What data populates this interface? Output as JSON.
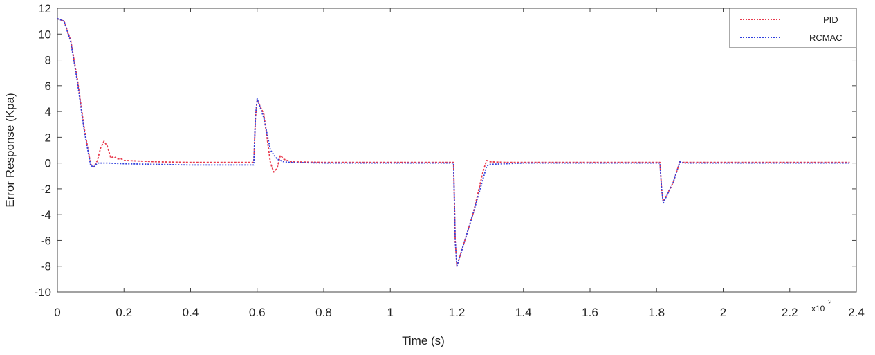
{
  "chart_data": {
    "type": "line",
    "xlabel": "Time (s)",
    "ylabel": "Error Response (Kpa)",
    "xlim": [
      0,
      2.4
    ],
    "ylim": [
      -10,
      12
    ],
    "x_ticks": [
      "0",
      "0.2",
      "0.4",
      "0.6",
      "0.8",
      "1",
      "1.2",
      "1.4",
      "1.6",
      "1.8",
      "2",
      "2.2",
      "2.4"
    ],
    "y_ticks": [
      "12",
      "10",
      "8",
      "6",
      "4",
      "2",
      "0",
      "-2",
      "-4",
      "-6",
      "-8",
      "-10"
    ],
    "x_multiplier": "x10",
    "x_multiplier_exp": "2",
    "legend_position": "top-right",
    "series": [
      {
        "name": "PID",
        "color": "#e8394c",
        "x": [
          0,
          0.02,
          0.04,
          0.06,
          0.08,
          0.1,
          0.11,
          0.12,
          0.13,
          0.14,
          0.15,
          0.16,
          0.17,
          0.18,
          0.19,
          0.2,
          0.25,
          0.3,
          0.4,
          0.5,
          0.59,
          0.595,
          0.6,
          0.62,
          0.64,
          0.65,
          0.66,
          0.67,
          0.68,
          0.7,
          0.8,
          1.0,
          1.19,
          1.195,
          1.2,
          1.25,
          1.28,
          1.29,
          1.3,
          1.35,
          1.4,
          1.6,
          1.81,
          1.815,
          1.82,
          1.85,
          1.87,
          1.88,
          1.9,
          2.0,
          2.2,
          2.38
        ],
        "y": [
          11.2,
          11.0,
          9.5,
          6.5,
          2.8,
          -0.1,
          -0.3,
          0.2,
          1.2,
          1.7,
          1.3,
          0.4,
          0.5,
          0.3,
          0.35,
          0.2,
          0.15,
          0.1,
          0.05,
          0.05,
          0.05,
          3.5,
          4.9,
          3.8,
          0.0,
          -0.7,
          -0.4,
          0.6,
          0.3,
          0.1,
          0.05,
          0.05,
          0.05,
          -6.0,
          -8.0,
          -3.8,
          -0.5,
          0.2,
          0.1,
          0.05,
          0.05,
          0.05,
          0.05,
          -2.0,
          -3.0,
          -1.5,
          0.1,
          0.05,
          0.05,
          0.05,
          0.05,
          0.05
        ]
      },
      {
        "name": "RCMAC",
        "color": "#3040dd",
        "x": [
          0,
          0.02,
          0.04,
          0.06,
          0.08,
          0.1,
          0.11,
          0.12,
          0.15,
          0.2,
          0.3,
          0.4,
          0.5,
          0.59,
          0.595,
          0.6,
          0.62,
          0.64,
          0.66,
          0.68,
          0.7,
          0.8,
          1.0,
          1.19,
          1.195,
          1.2,
          1.25,
          1.29,
          1.3,
          1.4,
          1.6,
          1.81,
          1.815,
          1.82,
          1.85,
          1.87,
          1.88,
          1.9,
          2.0,
          2.2,
          2.38
        ],
        "y": [
          11.2,
          11.0,
          9.4,
          6.3,
          2.6,
          -0.2,
          -0.3,
          0.0,
          0.0,
          -0.05,
          -0.1,
          -0.15,
          -0.15,
          -0.15,
          3.6,
          5.0,
          3.5,
          1.0,
          0.3,
          0.1,
          0.05,
          0.0,
          0.0,
          0.0,
          -6.0,
          -8.0,
          -3.8,
          -0.2,
          -0.1,
          0.0,
          0.0,
          0.0,
          -2.0,
          -3.1,
          -1.5,
          0.1,
          0.0,
          0.0,
          0.0,
          0.0,
          0.0
        ]
      }
    ]
  }
}
